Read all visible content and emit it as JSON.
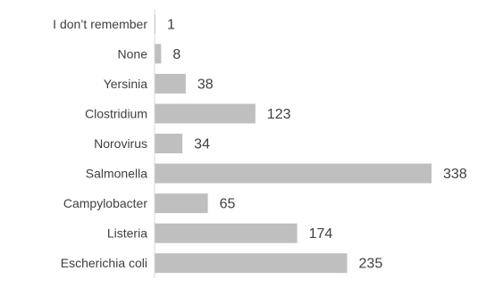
{
  "chart_data": {
    "type": "bar",
    "orientation": "horizontal",
    "title": "",
    "xlabel": "",
    "ylabel": "",
    "categories": [
      "I don’t remember",
      "None",
      "Yersinia",
      "Clostridium",
      "Norovirus",
      "Salmonella",
      "Campylobacter",
      "Listeria",
      "Escherichia coli"
    ],
    "values": [
      1,
      8,
      38,
      123,
      34,
      338,
      65,
      174,
      235
    ],
    "xlim": [
      0,
      338
    ],
    "data_labels": true,
    "grid": false,
    "legend": "none",
    "bar_color": "#bfbfbf",
    "axis_color": "#d9d9d9",
    "text_color": "#404040"
  }
}
